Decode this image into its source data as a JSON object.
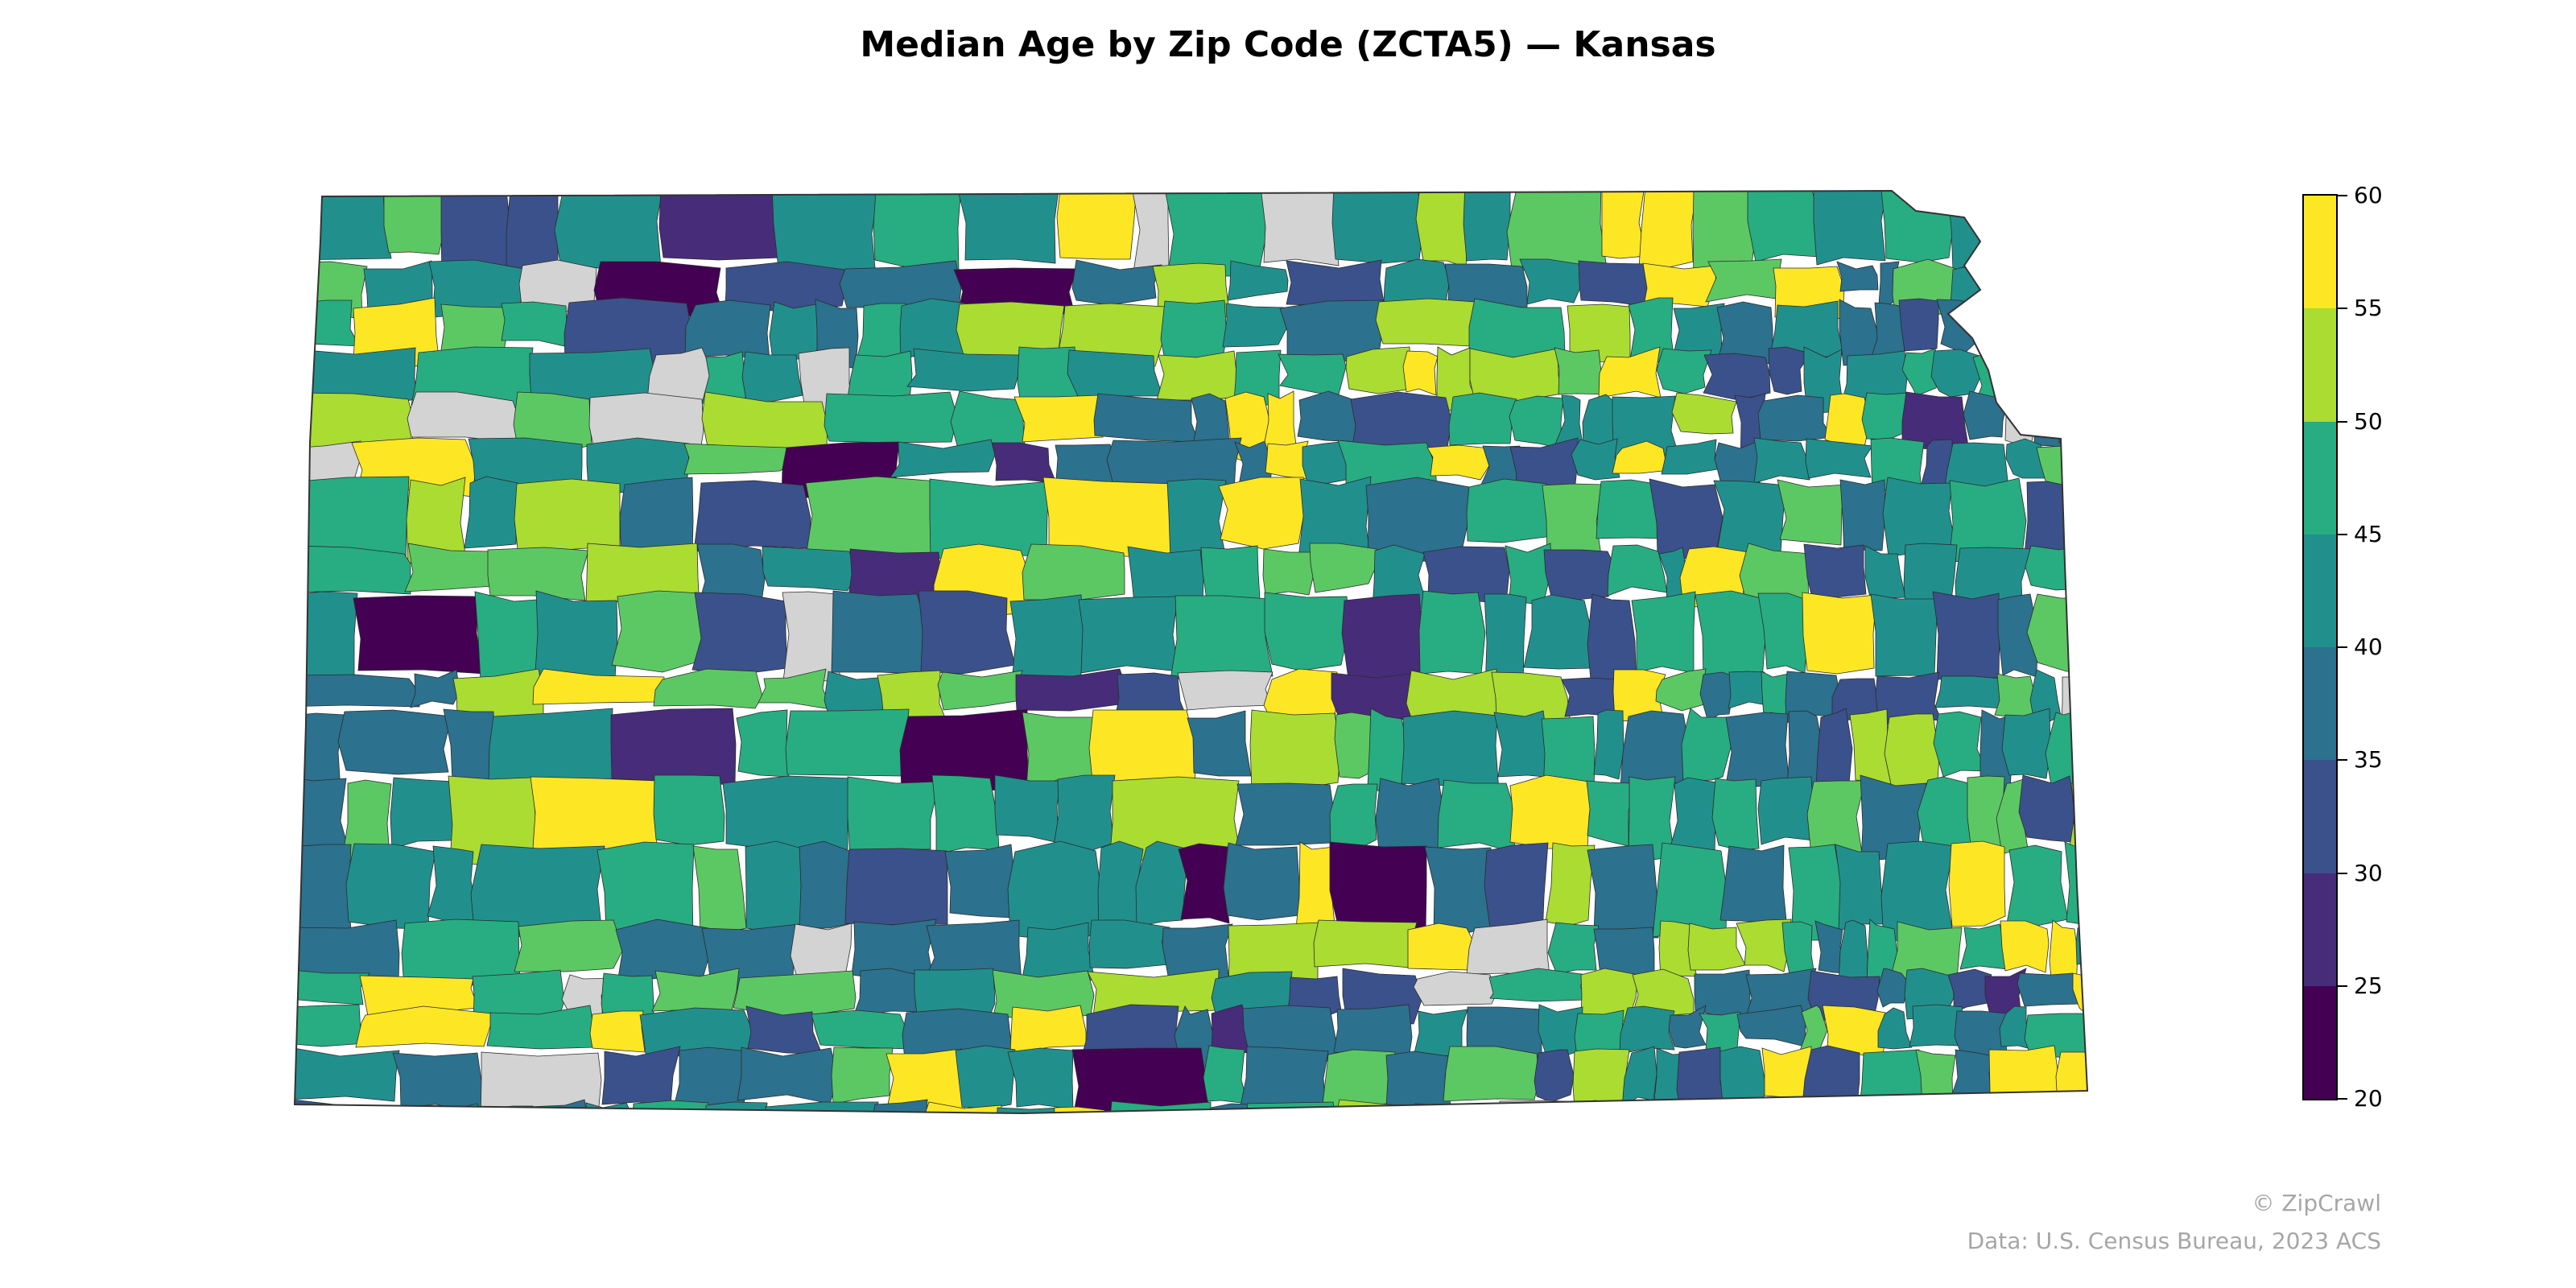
{
  "title": "Median Age by Zip Code (ZCTA5) — Kansas",
  "colorbar": {
    "ticks": [
      "20",
      "25",
      "30",
      "35",
      "40",
      "45",
      "50",
      "55",
      "60"
    ],
    "bins": [
      {
        "from": 20,
        "to": 25,
        "color": "#440154"
      },
      {
        "from": 25,
        "to": 30,
        "color": "#472c7a"
      },
      {
        "from": 30,
        "to": 35,
        "color": "#3b518b"
      },
      {
        "from": 35,
        "to": 40,
        "color": "#2c718e"
      },
      {
        "from": 40,
        "to": 45,
        "color": "#21908d"
      },
      {
        "from": 45,
        "to": 50,
        "color": "#27ad81"
      },
      {
        "from": 50,
        "to": 55,
        "color": "#5cc863"
      },
      {
        "from": 55,
        "to": 60,
        "color": "#aadc32"
      }
    ],
    "top_color": "#fde725",
    "no_data_color": "#d3d3d3"
  },
  "footer": {
    "credit": "© ZipCrawl",
    "source": "Data: U.S. Census Bureau, 2023 ACS"
  }
}
